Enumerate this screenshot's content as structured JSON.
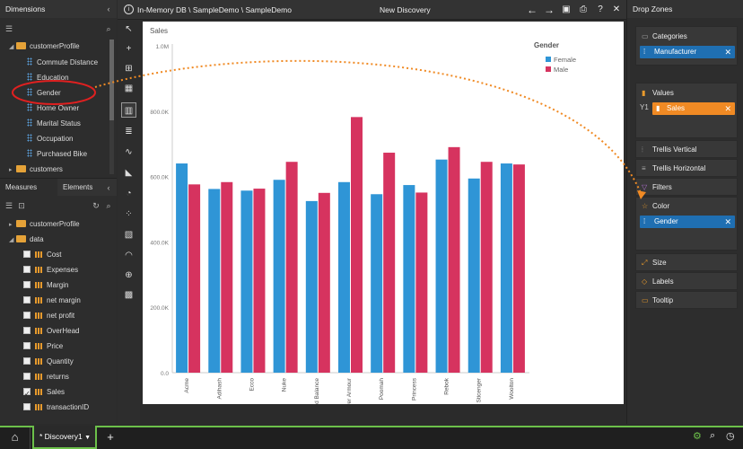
{
  "left_panel": {
    "title": "Dimensions",
    "tree": [
      {
        "label": "customerProfile",
        "type": "folder-open"
      },
      {
        "label": "Commute Distance",
        "type": "dim"
      },
      {
        "label": "Education",
        "type": "dim"
      },
      {
        "label": "Gender",
        "type": "dim"
      },
      {
        "label": "Home Owner",
        "type": "dim"
      },
      {
        "label": "Marital Status",
        "type": "dim"
      },
      {
        "label": "Occupation",
        "type": "dim"
      },
      {
        "label": "Purchased Bike",
        "type": "dim"
      },
      {
        "label": "customers",
        "type": "folder-closed"
      }
    ],
    "tabs": [
      "Measures",
      "Elements"
    ],
    "measure_tree": [
      {
        "label": "customerProfile",
        "type": "folder"
      },
      {
        "label": "data",
        "type": "folder"
      },
      {
        "label": "Cost",
        "checked": false
      },
      {
        "label": "Expenses",
        "checked": false
      },
      {
        "label": "Margin",
        "checked": false
      },
      {
        "label": "net margin",
        "checked": false
      },
      {
        "label": "net profit",
        "checked": false
      },
      {
        "label": "OverHead",
        "checked": false
      },
      {
        "label": "Price",
        "checked": false
      },
      {
        "label": "Quantity",
        "checked": false
      },
      {
        "label": "returns",
        "checked": false
      },
      {
        "label": "Sales",
        "checked": true
      },
      {
        "label": "transactionID",
        "checked": false
      }
    ]
  },
  "header": {
    "path": "In-Memory DB \\ SampleDemo \\ SampleDemo",
    "title": "New Discovery"
  },
  "right_panel": {
    "title": "Drop Zones",
    "zones": {
      "categories": {
        "label": "Categories",
        "pill": "Manufacturer"
      },
      "values": {
        "label": "Values",
        "axis": "Y1",
        "pill": "Sales"
      },
      "trellis_vertical": "Trellis Vertical",
      "trellis_horizontal": "Trellis Horizontal",
      "filters": "Filters",
      "color": {
        "label": "Color",
        "pill": "Gender"
      },
      "size": "Size",
      "labels": "Labels",
      "tooltip": "Tooltip"
    }
  },
  "bottom": {
    "tab": "* Discovery1"
  },
  "colors": {
    "female": "#2f95d6",
    "male": "#d6335f",
    "accent": "#6cc04a",
    "pill_blue": "#1f6fb2",
    "pill_orange": "#f08a24",
    "arrow": "#f08a24",
    "highlight": "#e02020"
  },
  "chart_data": {
    "type": "bar",
    "title": "Sales",
    "legend_title": "Gender",
    "legend_position": "top-right",
    "categories": [
      "Acme",
      "Adihash",
      "Ecco",
      "Nuke",
      "Old Balance",
      "Over Armour",
      "Poomah",
      "Princess",
      "Rebok",
      "Sticenger",
      "Woolton"
    ],
    "series": [
      {
        "name": "Female",
        "values": [
          640,
          562,
          557,
          590,
          525,
          583,
          546,
          574,
          652,
          594,
          640
        ]
      },
      {
        "name": "Male",
        "values": [
          576,
          583,
          563,
          645,
          550,
          782,
          673,
          551,
          690,
          645,
          637
        ]
      }
    ],
    "y_ticks": [
      "0.0",
      "200.0K",
      "400.0K",
      "600.0K",
      "800.0K",
      "1.0M"
    ],
    "ylim": [
      0,
      1000
    ],
    "grid": false
  }
}
